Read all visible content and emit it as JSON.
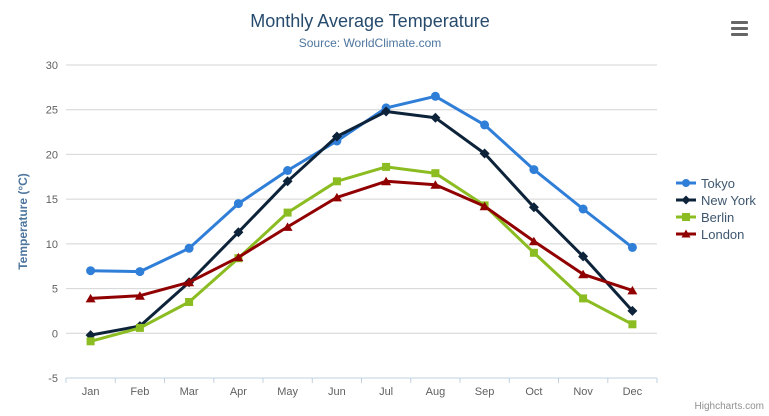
{
  "chart": {
    "credits": "Highcharts.com"
  },
  "icons": {
    "export_menu": "hamburger-menu-icon"
  },
  "style": {
    "title_color": "#274b6d",
    "subtitle_color": "#4d759e",
    "axis_label_color": "#606060",
    "axis_title_color": "#4d759e",
    "grid_color": "#d4d4d4",
    "axis_line_color": "#c0d0e0",
    "legend_text_color": "#3e576f",
    "credits_color": "#909090",
    "menu_icon_color": "#666666"
  },
  "chart_data": {
    "type": "line",
    "title": "Monthly Average Temperature",
    "subtitle": "Source: WorldClimate.com",
    "categories": [
      "Jan",
      "Feb",
      "Mar",
      "Apr",
      "May",
      "Jun",
      "Jul",
      "Aug",
      "Sep",
      "Oct",
      "Nov",
      "Dec"
    ],
    "xlabel": "",
    "ylabel": "Temperature (°C)",
    "ylim": [
      -5,
      30
    ],
    "yticks": [
      30,
      25,
      20,
      15,
      10,
      5,
      0,
      -5
    ],
    "grid": "horizontal",
    "legend_position": "right",
    "series": [
      {
        "name": "Tokyo",
        "color": "#2f7ed8",
        "marker": "circle",
        "values": [
          7.0,
          6.9,
          9.5,
          14.5,
          18.2,
          21.5,
          25.2,
          26.5,
          23.3,
          18.3,
          13.9,
          9.6
        ]
      },
      {
        "name": "New York",
        "color": "#0d233a",
        "marker": "diamond",
        "values": [
          -0.2,
          0.8,
          5.7,
          11.3,
          17.0,
          22.0,
          24.8,
          24.1,
          20.1,
          14.1,
          8.6,
          2.5
        ]
      },
      {
        "name": "Berlin",
        "color": "#8bbc21",
        "marker": "square",
        "values": [
          -0.9,
          0.6,
          3.5,
          8.4,
          13.5,
          17.0,
          18.6,
          17.9,
          14.3,
          9.0,
          3.9,
          1.0
        ]
      },
      {
        "name": "London",
        "color": "#910000",
        "marker": "triangle",
        "values": [
          3.9,
          4.2,
          5.7,
          8.5,
          11.9,
          15.2,
          17.0,
          16.6,
          14.2,
          10.3,
          6.6,
          4.8
        ]
      }
    ]
  }
}
